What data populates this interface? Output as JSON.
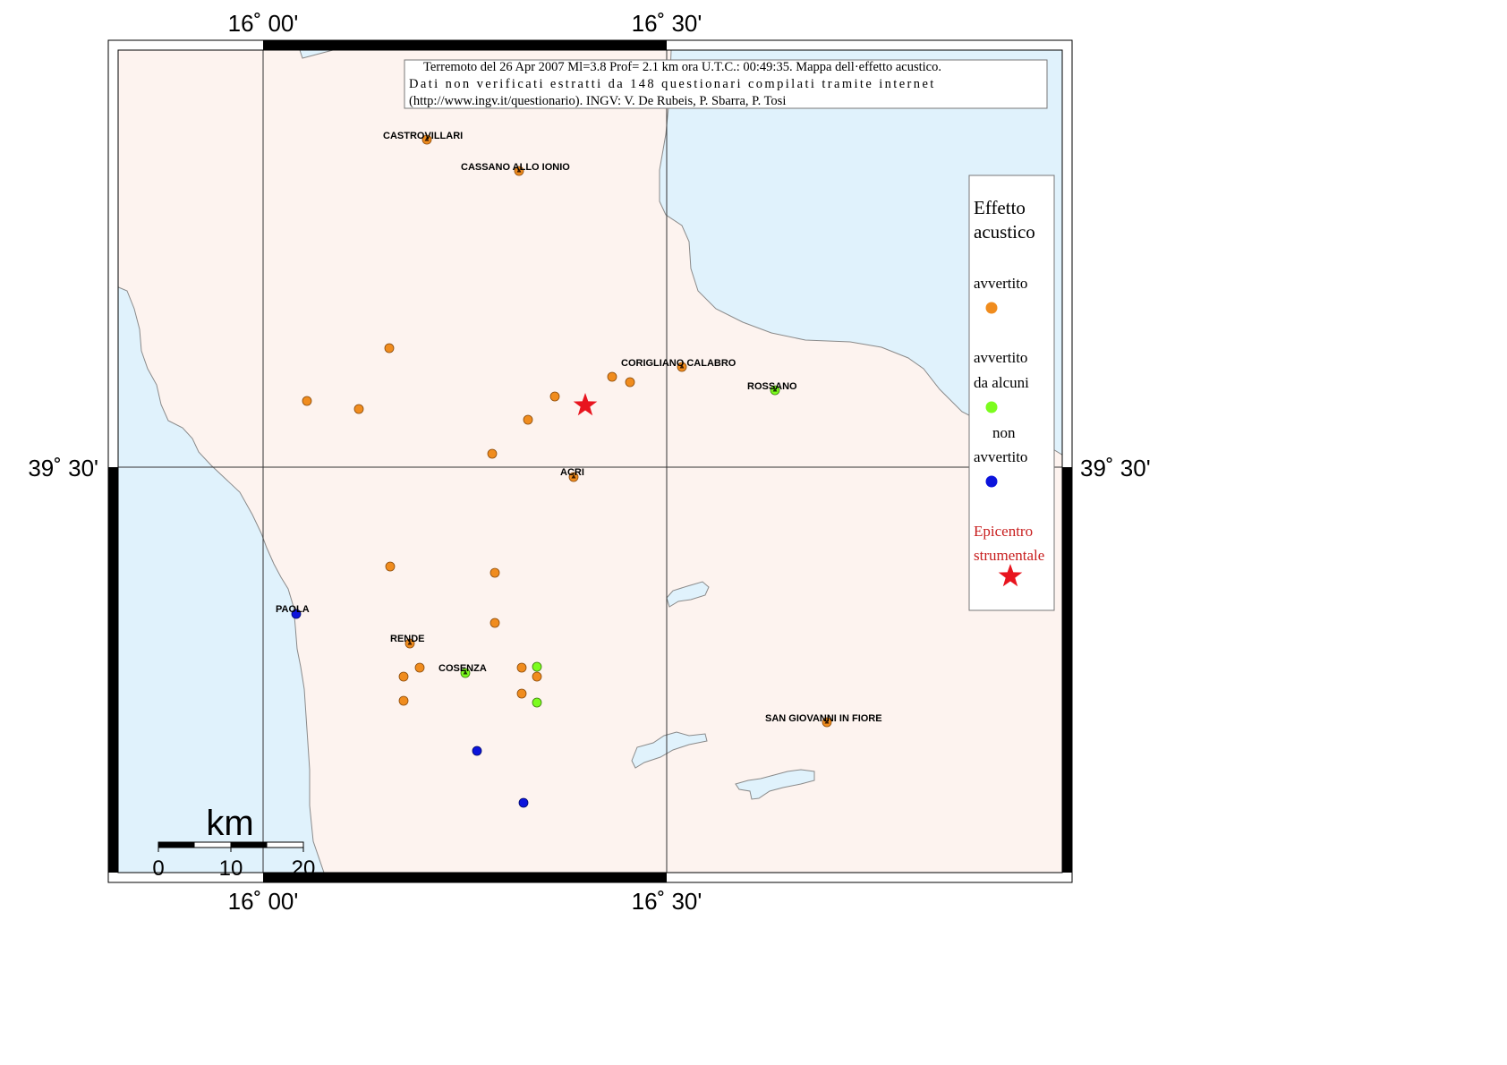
{
  "header": {
    "line1": "Terremoto del 26 Apr 2007 Ml=3.8 Prof= 2.1 km ora U.T.C.: 00:49:35.  Mappa dell·effetto acustico.",
    "line2": "Dati non verificati estratti da 148 questionari compilati tramite internet",
    "line3": "(http://www.ingv.it/questionario).   INGV: V.  De Rubeis, P.  Sbarra, P.  Tosi"
  },
  "graticule": {
    "lon_left": "16˚ 00'",
    "lon_right": "16˚ 30'",
    "lat_mid": "39˚ 30'"
  },
  "places": [
    {
      "id": "castrovillari",
      "name": "CASTROVILLARI"
    },
    {
      "id": "cassano",
      "name": "CASSANO ALLO IONIO"
    },
    {
      "id": "corigliano",
      "name": "CORIGLIANO CALABRO"
    },
    {
      "id": "rossano",
      "name": "ROSSANO"
    },
    {
      "id": "acri",
      "name": "ACRI"
    },
    {
      "id": "paola",
      "name": "PAOLA"
    },
    {
      "id": "rende",
      "name": "RENDE"
    },
    {
      "id": "cosenza",
      "name": "COSENZA"
    },
    {
      "id": "sangiovanni",
      "name": "SAN GIOVANNI IN FIORE"
    }
  ],
  "legend": {
    "title1": "Effetto",
    "title2": "acustico",
    "felt": "avvertito",
    "some1": "avvertito",
    "some2": "da alcuni",
    "not1": "non",
    "not2": "avvertito",
    "epi1": "Epicentro",
    "epi2": "strumentale"
  },
  "scale": {
    "unit": "km",
    "ticks": [
      "0",
      "10",
      "20"
    ]
  },
  "colors": {
    "land": "#fdf3ef",
    "sea": "#e0f2fc",
    "felt": "#f08c1e",
    "felt_by_some": "#7cfc1e",
    "not_felt": "#0c14dc",
    "epicenter": "#e8141e",
    "epicenter_text": "#c81e1e"
  },
  "observations": {
    "felt_count": 29,
    "felt_by_some_count": 5,
    "not_felt_count": 3
  }
}
